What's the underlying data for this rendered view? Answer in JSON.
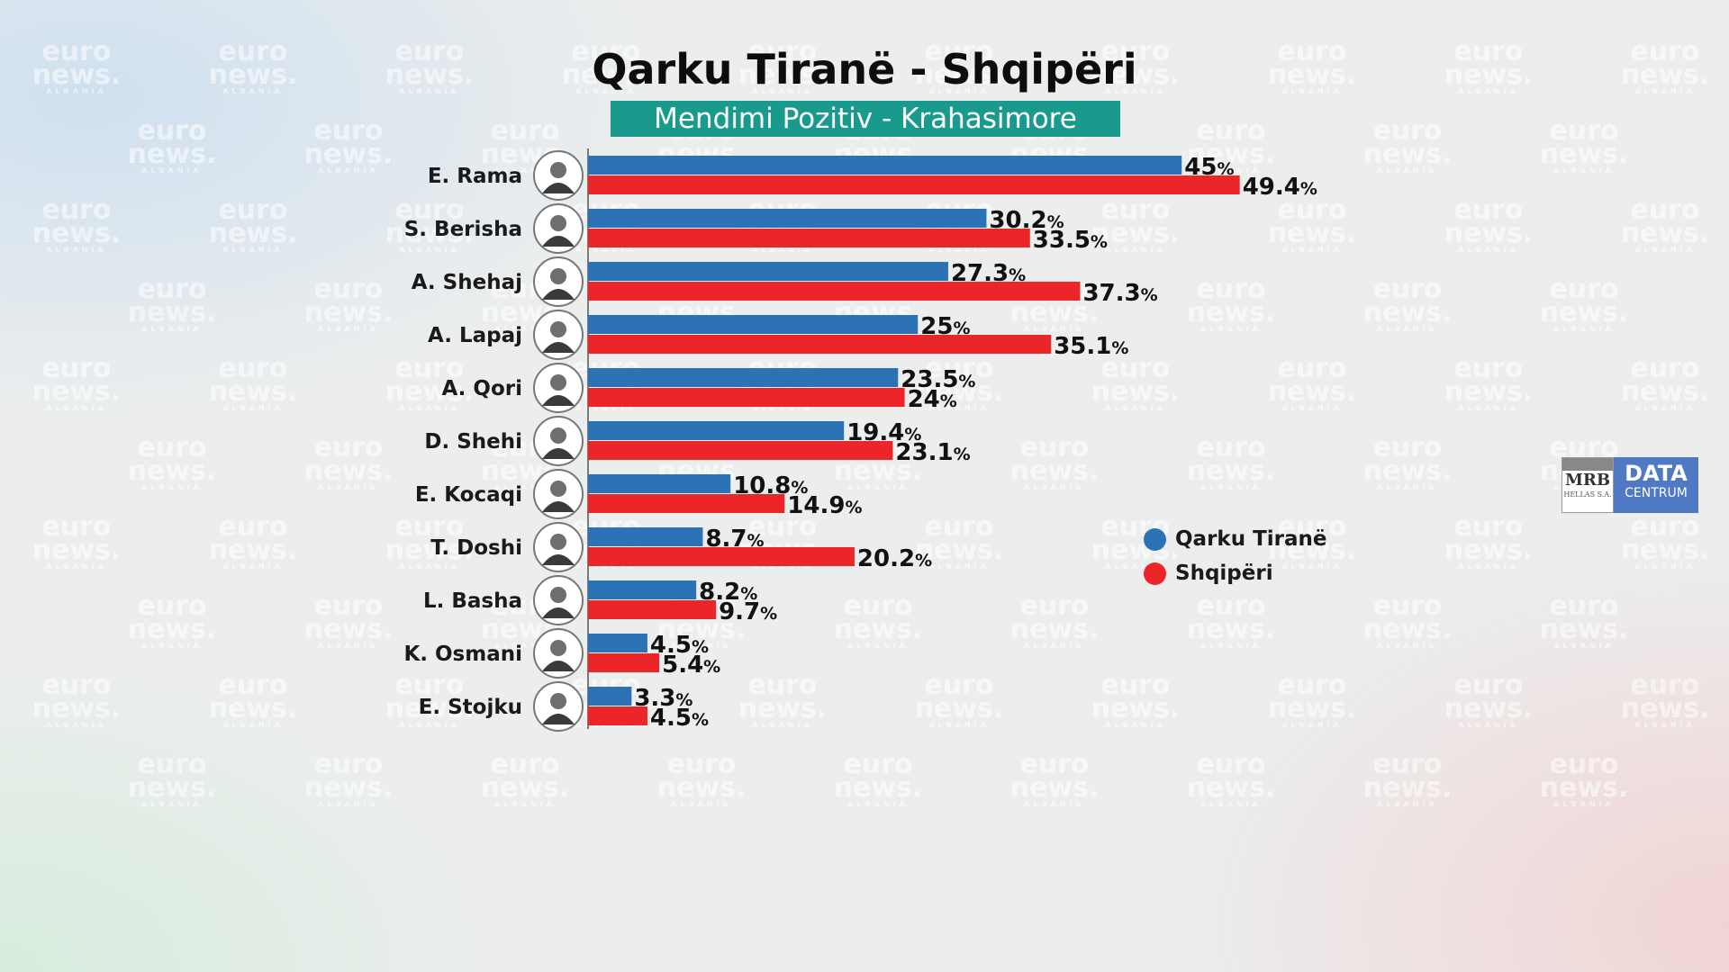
{
  "watermark": {
    "line1": "euro",
    "line2": "news.",
    "line3": "ALBANIA"
  },
  "title": "Qarku Tiranë - Shqipëri",
  "subtitle": "Mendimi Pozitiv - Krahasimore",
  "colors": {
    "series1": "#2c73b5",
    "series2": "#ec2528",
    "subtitle_bg": "#1a9a8c"
  },
  "logo": {
    "left_top": "MRB",
    "left_bottom": "HELLAS S.A.",
    "right_top": "DATA",
    "right_bottom": "CENTRUM"
  },
  "chart_data": {
    "type": "bar",
    "orientation": "horizontal",
    "categories": [
      "E. Rama",
      "S. Berisha",
      "A. Shehaj",
      "A. Lapaj",
      "A. Qori",
      "D. Shehi",
      "E. Kocaqi",
      "T. Doshi",
      "L. Basha",
      "K. Osmani",
      "E. Stojku"
    ],
    "series": [
      {
        "name": "Qarku Tiranë",
        "color": "#2c73b5",
        "values": [
          45,
          30.2,
          27.3,
          25,
          23.5,
          19.4,
          10.8,
          8.7,
          8.2,
          4.5,
          3.3
        ]
      },
      {
        "name": "Shqipëri",
        "color": "#ec2528",
        "values": [
          49.4,
          33.5,
          37.3,
          35.1,
          24,
          23.1,
          14.9,
          20.2,
          9.7,
          5.4,
          4.5
        ]
      }
    ],
    "value_suffix": "%",
    "legend_position": "right"
  }
}
